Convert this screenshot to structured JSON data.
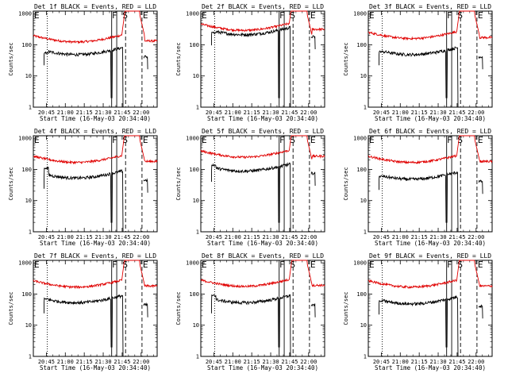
{
  "chart_data": [
    {
      "type": "line",
      "title": "Det 1f BLACK = Events, RED = LLD",
      "detector": 1,
      "ylim_lld": [
        350,
        1000
      ],
      "lld_base": 140,
      "evt_base": 55,
      "evt_first": 55
    },
    {
      "type": "line",
      "title": "Det 2f BLACK = Events, RED = LLD",
      "detector": 2,
      "lld_base": 330,
      "evt_base": 240,
      "evt_first": 240
    },
    {
      "type": "line",
      "title": "Det 3f BLACK = Events, RED = LLD",
      "detector": 3,
      "lld_base": 180,
      "evt_base": 55,
      "evt_first": 60
    },
    {
      "type": "line",
      "title": "Det 4f BLACK = Events, RED = LLD",
      "detector": 4,
      "lld_base": 190,
      "evt_base": 60,
      "evt_first": 110
    },
    {
      "type": "line",
      "title": "Det 5f BLACK = Events, RED = LLD",
      "detector": 5,
      "lld_base": 280,
      "evt_base": 100,
      "evt_first": 140
    },
    {
      "type": "line",
      "title": "Det 6f BLACK = Events, RED = LLD",
      "detector": 6,
      "lld_base": 190,
      "evt_base": 55,
      "evt_first": 60
    },
    {
      "type": "line",
      "title": "Det 7f BLACK = Events, RED = LLD",
      "detector": 7,
      "lld_base": 190,
      "evt_base": 60,
      "evt_first": 70
    },
    {
      "type": "line",
      "title": "Det 8f BLACK = Events, RED = LLD",
      "detector": 8,
      "lld_base": 200,
      "evt_base": 60,
      "evt_first": 90
    },
    {
      "type": "line",
      "title": "Det 9f BLACK = Events, RED = LLD",
      "detector": 9,
      "lld_base": 190,
      "evt_base": 55,
      "evt_first": 60
    }
  ],
  "shared": {
    "ylabel": "Counts/sec",
    "xlabel": "Start Time (16-May-03 20:34:40)",
    "yticks": [
      "1",
      "10",
      "100",
      "1000"
    ],
    "xticks_row1": [
      "20:45",
      "21:00",
      "21:15",
      "21:30",
      "21:45",
      "22:00"
    ],
    "xticks_row2": [
      "20:45",
      "21:00",
      "21:15",
      "21:30",
      "21:45",
      "22:00"
    ],
    "xticks_row3": [
      "20:45",
      "21:00",
      "21:15",
      "21:30",
      "21:45",
      "22:00"
    ],
    "xticks_row1_p1": [
      "20:45",
      "21:00",
      "21:15",
      "21:30",
      "21:45",
      "22:00"
    ],
    "xrange_minutes": [
      0,
      98
    ],
    "yrange": [
      1,
      1200
    ],
    "markers": [
      "E",
      "F",
      "S",
      "E"
    ],
    "colors": {
      "events": "#000000",
      "lld": "#e00000"
    }
  }
}
